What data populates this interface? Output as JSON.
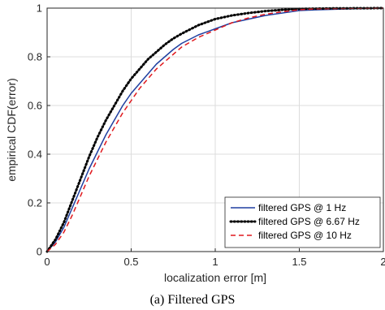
{
  "chart_data": {
    "type": "line",
    "xlabel": "localization error [m]",
    "ylabel": "empirical CDF(error)",
    "xlim": [
      0,
      2
    ],
    "ylim": [
      0,
      1
    ],
    "x_ticks": [
      "0",
      "0.5",
      "1",
      "1.5",
      "2"
    ],
    "y_ticks": [
      "0",
      "0.2",
      "0.4",
      "0.6",
      "0.8",
      "1"
    ],
    "grid": true,
    "legend_position": "bottom-right",
    "caption": "(a) Filtered GPS",
    "series": [
      {
        "name": "filtered GPS @ 1 Hz",
        "color": "#1f3fa0",
        "style": "solid",
        "points": [
          [
            0,
            0
          ],
          [
            0.05,
            0.04
          ],
          [
            0.1,
            0.1
          ],
          [
            0.15,
            0.18
          ],
          [
            0.2,
            0.26
          ],
          [
            0.25,
            0.34
          ],
          [
            0.3,
            0.41
          ],
          [
            0.35,
            0.48
          ],
          [
            0.4,
            0.54
          ],
          [
            0.45,
            0.6
          ],
          [
            0.5,
            0.65
          ],
          [
            0.55,
            0.69
          ],
          [
            0.6,
            0.73
          ],
          [
            0.65,
            0.77
          ],
          [
            0.7,
            0.8
          ],
          [
            0.75,
            0.83
          ],
          [
            0.8,
            0.855
          ],
          [
            0.9,
            0.89
          ],
          [
            1.0,
            0.915
          ],
          [
            1.1,
            0.94
          ],
          [
            1.2,
            0.955
          ],
          [
            1.3,
            0.97
          ],
          [
            1.4,
            0.98
          ],
          [
            1.5,
            0.99
          ],
          [
            1.6,
            0.993
          ],
          [
            1.8,
            0.997
          ],
          [
            2.0,
            1.0
          ]
        ]
      },
      {
        "name": "filtered GPS @ 6.67 Hz",
        "color": "#000000",
        "style": "dotted",
        "points": [
          [
            0,
            0
          ],
          [
            0.05,
            0.05
          ],
          [
            0.1,
            0.12
          ],
          [
            0.15,
            0.21
          ],
          [
            0.2,
            0.3
          ],
          [
            0.25,
            0.39
          ],
          [
            0.3,
            0.47
          ],
          [
            0.35,
            0.54
          ],
          [
            0.4,
            0.6
          ],
          [
            0.45,
            0.66
          ],
          [
            0.5,
            0.71
          ],
          [
            0.55,
            0.75
          ],
          [
            0.6,
            0.79
          ],
          [
            0.65,
            0.82
          ],
          [
            0.7,
            0.85
          ],
          [
            0.75,
            0.875
          ],
          [
            0.8,
            0.895
          ],
          [
            0.9,
            0.93
          ],
          [
            1.0,
            0.955
          ],
          [
            1.1,
            0.97
          ],
          [
            1.2,
            0.98
          ],
          [
            1.3,
            0.988
          ],
          [
            1.4,
            0.993
          ],
          [
            1.5,
            0.997
          ],
          [
            1.7,
            0.999
          ],
          [
            2.0,
            1.0
          ]
        ]
      },
      {
        "name": "filtered GPS @ 10 Hz",
        "color": "#e0191e",
        "style": "dashed",
        "points": [
          [
            0,
            0
          ],
          [
            0.05,
            0.03
          ],
          [
            0.1,
            0.08
          ],
          [
            0.15,
            0.15
          ],
          [
            0.2,
            0.23
          ],
          [
            0.25,
            0.31
          ],
          [
            0.3,
            0.38
          ],
          [
            0.35,
            0.45
          ],
          [
            0.4,
            0.51
          ],
          [
            0.45,
            0.57
          ],
          [
            0.5,
            0.62
          ],
          [
            0.55,
            0.67
          ],
          [
            0.6,
            0.71
          ],
          [
            0.65,
            0.75
          ],
          [
            0.7,
            0.78
          ],
          [
            0.75,
            0.81
          ],
          [
            0.8,
            0.84
          ],
          [
            0.9,
            0.88
          ],
          [
            1.0,
            0.91
          ],
          [
            1.1,
            0.94
          ],
          [
            1.2,
            0.96
          ],
          [
            1.3,
            0.975
          ],
          [
            1.4,
            0.985
          ],
          [
            1.5,
            0.993
          ],
          [
            1.6,
            0.997
          ],
          [
            1.8,
            0.999
          ],
          [
            2.0,
            1.0
          ]
        ]
      }
    ]
  }
}
